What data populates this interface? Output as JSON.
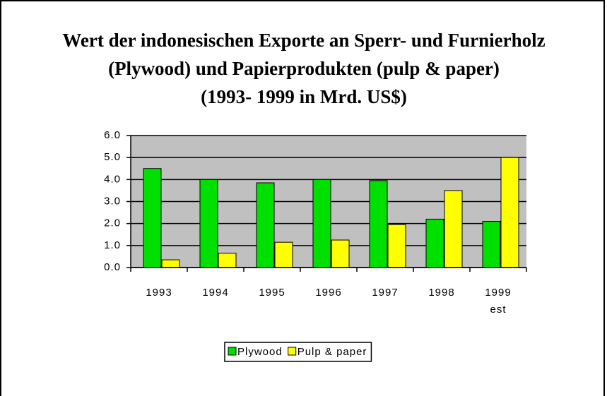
{
  "chart_data": {
    "type": "bar",
    "title": [
      "Wert der indonesischen Exporte an Sperr- und Furnierholz",
      "(Plywood) und Papierprodukten (pulp & paper)",
      "(1993- 1999 in Mrd. US$)"
    ],
    "categories": [
      "1993",
      "1994",
      "1995",
      "1996",
      "1997",
      "1998",
      "1999 est"
    ],
    "series": [
      {
        "name": "Plywood",
        "color": "#00e000",
        "values": [
          4.5,
          4.0,
          3.85,
          4.0,
          3.95,
          2.2,
          2.1
        ]
      },
      {
        "name": "Pulp & paper",
        "color": "#ffff00",
        "values": [
          0.35,
          0.65,
          1.15,
          1.25,
          1.95,
          3.5,
          5.0
        ]
      }
    ],
    "ylim": [
      0,
      6
    ],
    "yticks": [
      {
        "value": 0,
        "label": "0.0"
      },
      {
        "value": 1,
        "label": "1.0"
      },
      {
        "value": 2,
        "label": "2.0"
      },
      {
        "value": 3,
        "label": "3.0"
      },
      {
        "value": 4,
        "label": "4.0"
      },
      {
        "value": 5,
        "label": "5.0"
      },
      {
        "value": 6,
        "label": "6.0"
      }
    ],
    "grid": true,
    "legend": "bottom"
  }
}
